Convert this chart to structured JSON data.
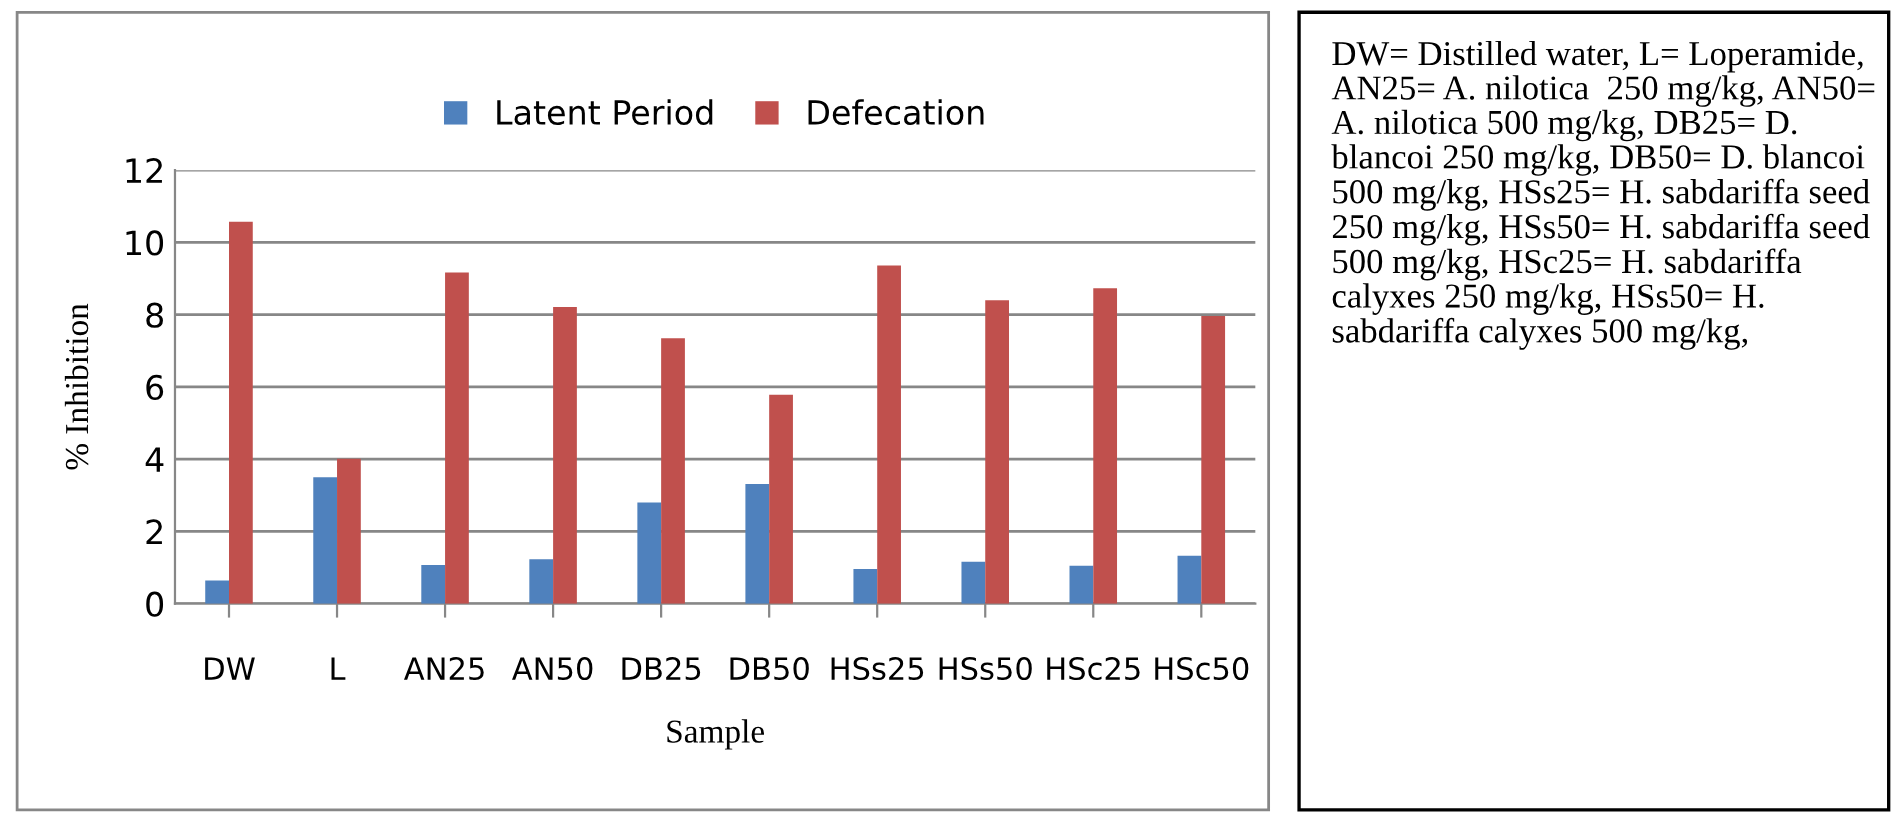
{
  "chart_data": {
    "type": "bar",
    "xlabel": "Sample",
    "ylabel": "% Inhibition",
    "categories": [
      "DW",
      "L",
      "AN25",
      "AN50",
      "DB25",
      "DB50",
      "HSs25",
      "HSs50",
      "HSc25",
      "HSc50"
    ],
    "series": [
      {
        "name": "Latent Period",
        "color": "#4f81bd",
        "values": [
          0.64,
          3.5,
          1.07,
          1.23,
          2.8,
          3.31,
          0.96,
          1.16,
          1.05,
          1.33
        ]
      },
      {
        "name": "Defecation",
        "color": "#c0504d",
        "values": [
          10.57,
          4.01,
          9.17,
          8.21,
          7.35,
          5.78,
          9.36,
          8.4,
          8.73,
          7.96
        ]
      }
    ],
    "ylim": [
      0,
      12
    ],
    "yticks": [
      0,
      2,
      4,
      6,
      8,
      10,
      12
    ],
    "grid": "y",
    "legend": "top",
    "annotations": [
      "DW= Distilled water, L= Loperamide, AN25= A. nilotica  250 mg/kg, AN50= A. nilotica 500 mg/kg, DB25= D. blancoi 250 mg/kg, DB50= D. blancoi 500 mg/kg, HSs25= H. sabdariffa seed 250 mg/kg, HSs50= H. sabdariffa seed 500 mg/kg, HSc25= H. sabdariffa calyxes 250 mg/kg, HSs50= H. sabdariffa calyxes 500 mg/kg,"
    ]
  }
}
